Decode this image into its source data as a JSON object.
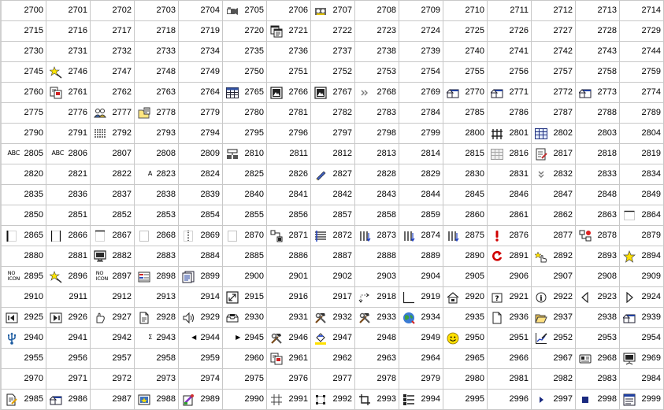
{
  "icon_grid": {
    "columns": 15,
    "cells": [
      {
        "number": "2700"
      },
      {
        "number": "2701"
      },
      {
        "number": "2702"
      },
      {
        "number": "2703"
      },
      {
        "number": "2704"
      },
      {
        "number": "2705",
        "icon": "video-camera-icon"
      },
      {
        "number": "2706"
      },
      {
        "number": "2707",
        "icon": "tape-recorder-icon"
      },
      {
        "number": "2708"
      },
      {
        "number": "2709"
      },
      {
        "number": "2710"
      },
      {
        "number": "2711"
      },
      {
        "number": "2712"
      },
      {
        "number": "2713"
      },
      {
        "number": "2714"
      },
      {
        "number": "2715"
      },
      {
        "number": "2716"
      },
      {
        "number": "2717"
      },
      {
        "number": "2718"
      },
      {
        "number": "2719"
      },
      {
        "number": "2720"
      },
      {
        "number": "2721",
        "icon": "copy-windows-icon"
      },
      {
        "number": "2722"
      },
      {
        "number": "2723"
      },
      {
        "number": "2724"
      },
      {
        "number": "2725"
      },
      {
        "number": "2726"
      },
      {
        "number": "2727"
      },
      {
        "number": "2728"
      },
      {
        "number": "2729"
      },
      {
        "number": "2730"
      },
      {
        "number": "2731"
      },
      {
        "number": "2732"
      },
      {
        "number": "2733"
      },
      {
        "number": "2734"
      },
      {
        "number": "2735"
      },
      {
        "number": "2736"
      },
      {
        "number": "2737"
      },
      {
        "number": "2738"
      },
      {
        "number": "2739"
      },
      {
        "number": "2740"
      },
      {
        "number": "2741"
      },
      {
        "number": "2742"
      },
      {
        "number": "2743"
      },
      {
        "number": "2744"
      },
      {
        "number": "2745"
      },
      {
        "number": "2746",
        "icon": "star-wand-icon"
      },
      {
        "number": "2747"
      },
      {
        "number": "2748"
      },
      {
        "number": "2749"
      },
      {
        "number": "2750"
      },
      {
        "number": "2751"
      },
      {
        "number": "2752"
      },
      {
        "number": "2753"
      },
      {
        "number": "2754"
      },
      {
        "number": "2755"
      },
      {
        "number": "2756"
      },
      {
        "number": "2757"
      },
      {
        "number": "2758"
      },
      {
        "number": "2759"
      },
      {
        "number": "2760"
      },
      {
        "number": "2761",
        "icon": "copy-pages-icon"
      },
      {
        "number": "2762"
      },
      {
        "number": "2763"
      },
      {
        "number": "2764"
      },
      {
        "number": "2765",
        "icon": "table-icon"
      },
      {
        "number": "2766",
        "icon": "picture-frame-icon"
      },
      {
        "number": "2767",
        "icon": "picture-frame-icon"
      },
      {
        "number": "2768",
        "icon": "double-chevron-right-icon"
      },
      {
        "number": "2769"
      },
      {
        "number": "2770",
        "icon": "house-window-icon"
      },
      {
        "number": "2771",
        "icon": "house-window-icon"
      },
      {
        "number": "2772"
      },
      {
        "number": "2773",
        "icon": "house-window-icon"
      },
      {
        "number": "2774"
      },
      {
        "number": "2775"
      },
      {
        "number": "2776"
      },
      {
        "number": "2777",
        "icon": "people-icon"
      },
      {
        "number": "2778",
        "icon": "folder-paste-icon"
      },
      {
        "number": "2779"
      },
      {
        "number": "2780"
      },
      {
        "number": "2781"
      },
      {
        "number": "2782"
      },
      {
        "number": "2783"
      },
      {
        "number": "2784"
      },
      {
        "number": "2785"
      },
      {
        "number": "2786"
      },
      {
        "number": "2787"
      },
      {
        "number": "2788"
      },
      {
        "number": "2789"
      },
      {
        "number": "2790"
      },
      {
        "number": "2791"
      },
      {
        "number": "2792",
        "icon": "list-lines-icon"
      },
      {
        "number": "2793"
      },
      {
        "number": "2794"
      },
      {
        "number": "2795"
      },
      {
        "number": "2796"
      },
      {
        "number": "2797"
      },
      {
        "number": "2798"
      },
      {
        "number": "2799"
      },
      {
        "number": "2800"
      },
      {
        "number": "2801",
        "icon": "fence-icon"
      },
      {
        "number": "2802",
        "icon": "grid-table-icon"
      },
      {
        "number": "2803"
      },
      {
        "number": "2804"
      },
      {
        "number": "2805",
        "glyph": "ABC"
      },
      {
        "number": "2806",
        "glyph": "ABC"
      },
      {
        "number": "2807"
      },
      {
        "number": "2808"
      },
      {
        "number": "2809"
      },
      {
        "number": "2810",
        "icon": "stacked-blocks-icon"
      },
      {
        "number": "2811"
      },
      {
        "number": "2812"
      },
      {
        "number": "2813"
      },
      {
        "number": "2814"
      },
      {
        "number": "2815"
      },
      {
        "number": "2816",
        "icon": "gray-table-icon"
      },
      {
        "number": "2817",
        "icon": "edit-page-icon"
      },
      {
        "number": "2818"
      },
      {
        "number": "2819"
      },
      {
        "number": "2820"
      },
      {
        "number": "2821"
      },
      {
        "number": "2822"
      },
      {
        "number": "2823",
        "glyph": "A"
      },
      {
        "number": "2824"
      },
      {
        "number": "2825"
      },
      {
        "number": "2826"
      },
      {
        "number": "2827",
        "icon": "pen-icon"
      },
      {
        "number": "2828"
      },
      {
        "number": "2829"
      },
      {
        "number": "2830"
      },
      {
        "number": "2831"
      },
      {
        "number": "2832",
        "icon": "double-chevron-down-icon"
      },
      {
        "number": "2833"
      },
      {
        "number": "2834"
      },
      {
        "number": "2835"
      },
      {
        "number": "2836"
      },
      {
        "number": "2837"
      },
      {
        "number": "2838"
      },
      {
        "number": "2839"
      },
      {
        "number": "2840"
      },
      {
        "number": "2841"
      },
      {
        "number": "2842"
      },
      {
        "number": "2843"
      },
      {
        "number": "2844"
      },
      {
        "number": "2845"
      },
      {
        "number": "2846"
      },
      {
        "number": "2847"
      },
      {
        "number": "2848"
      },
      {
        "number": "2849"
      },
      {
        "number": "2850"
      },
      {
        "number": "2851"
      },
      {
        "number": "2852"
      },
      {
        "number": "2853"
      },
      {
        "number": "2854"
      },
      {
        "number": "2855"
      },
      {
        "number": "2856"
      },
      {
        "number": "2857"
      },
      {
        "number": "2858"
      },
      {
        "number": "2859"
      },
      {
        "number": "2860"
      },
      {
        "number": "2861"
      },
      {
        "number": "2862"
      },
      {
        "number": "2863"
      },
      {
        "number": "2864",
        "icon": "dotted-box-top-icon"
      },
      {
        "number": "2865",
        "icon": "border-left-bold-icon"
      },
      {
        "number": "2866",
        "icon": "border-sides-icon"
      },
      {
        "number": "2867",
        "icon": "border-top-icon"
      },
      {
        "number": "2868",
        "icon": "border-dotted-icon"
      },
      {
        "number": "2869",
        "icon": "border-center-icon"
      },
      {
        "number": "2870",
        "icon": "border-dotted-icon"
      },
      {
        "number": "2871",
        "icon": "shape-connect-icon"
      },
      {
        "number": "2872",
        "icon": "align-lines-icon"
      },
      {
        "number": "2873",
        "icon": "bars-arrow-icon"
      },
      {
        "number": "2874",
        "icon": "bars-arrow-icon"
      },
      {
        "number": "2875",
        "icon": "bars-arrow-icon"
      },
      {
        "number": "2876",
        "icon": "exclamation-icon"
      },
      {
        "number": "2877"
      },
      {
        "number": "2878",
        "icon": "network-red-icon"
      },
      {
        "number": "2879"
      },
      {
        "number": "2880"
      },
      {
        "number": "2881"
      },
      {
        "number": "2882",
        "icon": "monitor-icon"
      },
      {
        "number": "2883"
      },
      {
        "number": "2884"
      },
      {
        "number": "2885"
      },
      {
        "number": "2886"
      },
      {
        "number": "2887"
      },
      {
        "number": "2888"
      },
      {
        "number": "2889"
      },
      {
        "number": "2890"
      },
      {
        "number": "2891",
        "icon": "refresh-red-icon"
      },
      {
        "number": "2892",
        "icon": "hand-star-icon"
      },
      {
        "number": "2893"
      },
      {
        "number": "2894",
        "icon": "yellow-star-icon"
      },
      {
        "number": "2895",
        "glyph": "NO ICON"
      },
      {
        "number": "2896",
        "icon": "star-wand-icon"
      },
      {
        "number": "2897",
        "glyph": "NO ICON"
      },
      {
        "number": "2898",
        "icon": "form-icon"
      },
      {
        "number": "2899",
        "icon": "document-list-icon"
      },
      {
        "number": "2900"
      },
      {
        "number": "2901"
      },
      {
        "number": "2902"
      },
      {
        "number": "2903"
      },
      {
        "number": "2904"
      },
      {
        "number": "2905"
      },
      {
        "number": "2906"
      },
      {
        "number": "2907"
      },
      {
        "number": "2908"
      },
      {
        "number": "2909"
      },
      {
        "number": "2910"
      },
      {
        "number": "2911"
      },
      {
        "number": "2912"
      },
      {
        "number": "2913"
      },
      {
        "number": "2914"
      },
      {
        "number": "2915",
        "icon": "resize-icon"
      },
      {
        "number": "2916"
      },
      {
        "number": "2917"
      },
      {
        "number": "2918",
        "icon": "dotted-arrow-icon"
      },
      {
        "number": "2919",
        "icon": "corner-icon"
      },
      {
        "number": "2920",
        "icon": "lock-house-icon"
      },
      {
        "number": "2921",
        "icon": "question-box-icon"
      },
      {
        "number": "2922",
        "icon": "info-box-icon"
      },
      {
        "number": "2923",
        "icon": "triangle-left-icon"
      },
      {
        "number": "2924",
        "icon": "triangle-right-icon"
      },
      {
        "number": "2925",
        "icon": "first-icon"
      },
      {
        "number": "2926",
        "icon": "last-icon"
      },
      {
        "number": "2927",
        "icon": "hand-icon"
      },
      {
        "number": "2928",
        "icon": "page-icon"
      },
      {
        "number": "2929",
        "icon": "speaker-icon"
      },
      {
        "number": "2930",
        "icon": "tray-icon"
      },
      {
        "number": "2931"
      },
      {
        "number": "2932",
        "icon": "tools-icon"
      },
      {
        "number": "2933",
        "icon": "tools-icon"
      },
      {
        "number": "2934",
        "icon": "globe-icon"
      },
      {
        "number": "2935"
      },
      {
        "number": "2936",
        "icon": "blank-document-icon"
      },
      {
        "number": "2937",
        "icon": "open-folder-icon"
      },
      {
        "number": "2938"
      },
      {
        "number": "2939",
        "icon": "house-window-icon"
      },
      {
        "number": "2940",
        "icon": "usb-icon"
      },
      {
        "number": "2941"
      },
      {
        "number": "2942"
      },
      {
        "number": "2943",
        "glyph": "Σ"
      },
      {
        "number": "2944",
        "glyph": "◀"
      },
      {
        "number": "2945",
        "glyph": "▶"
      },
      {
        "number": "2946",
        "icon": "tools-icon"
      },
      {
        "number": "2947",
        "icon": "paint-bucket-icon"
      },
      {
        "number": "2948"
      },
      {
        "number": "2949"
      },
      {
        "number": "2950",
        "icon": "smiley-icon"
      },
      {
        "number": "2951"
      },
      {
        "number": "2952",
        "icon": "chart-pen-icon"
      },
      {
        "number": "2953"
      },
      {
        "number": "2954"
      },
      {
        "number": "2955"
      },
      {
        "number": "2956"
      },
      {
        "number": "2957"
      },
      {
        "number": "2958"
      },
      {
        "number": "2959"
      },
      {
        "number": "2960"
      },
      {
        "number": "2961",
        "icon": "copy-pages-icon"
      },
      {
        "number": "2962"
      },
      {
        "number": "2963"
      },
      {
        "number": "2964"
      },
      {
        "number": "2965"
      },
      {
        "number": "2966"
      },
      {
        "number": "2967"
      },
      {
        "number": "2968",
        "icon": "card-icon"
      },
      {
        "number": "2969",
        "icon": "presentation-icon"
      },
      {
        "number": "2970"
      },
      {
        "number": "2971"
      },
      {
        "number": "2972"
      },
      {
        "number": "2973"
      },
      {
        "number": "2974"
      },
      {
        "number": "2975"
      },
      {
        "number": "2976"
      },
      {
        "number": "2977"
      },
      {
        "number": "2978"
      },
      {
        "number": "2979"
      },
      {
        "number": "2980"
      },
      {
        "number": "2981"
      },
      {
        "number": "2982"
      },
      {
        "number": "2983"
      },
      {
        "number": "2984"
      },
      {
        "number": "2985",
        "icon": "document-edit-icon"
      },
      {
        "number": "2986",
        "icon": "house-window-icon"
      },
      {
        "number": "2987"
      },
      {
        "number": "2988",
        "icon": "photo-star-icon"
      },
      {
        "number": "2989",
        "icon": "paint-page-icon"
      },
      {
        "number": "2990"
      },
      {
        "number": "2991",
        "icon": "hash-grid-icon"
      },
      {
        "number": "2992",
        "icon": "select-box-icon"
      },
      {
        "number": "2993",
        "icon": "crop-icon"
      },
      {
        "number": "2994",
        "icon": "list-bars-icon"
      },
      {
        "number": "2995"
      },
      {
        "number": "2996"
      },
      {
        "number": "2997",
        "icon": "play-small-icon"
      },
      {
        "number": "2998",
        "icon": "stop-small-icon"
      },
      {
        "number": "2999",
        "icon": "window-list-icon"
      }
    ]
  }
}
